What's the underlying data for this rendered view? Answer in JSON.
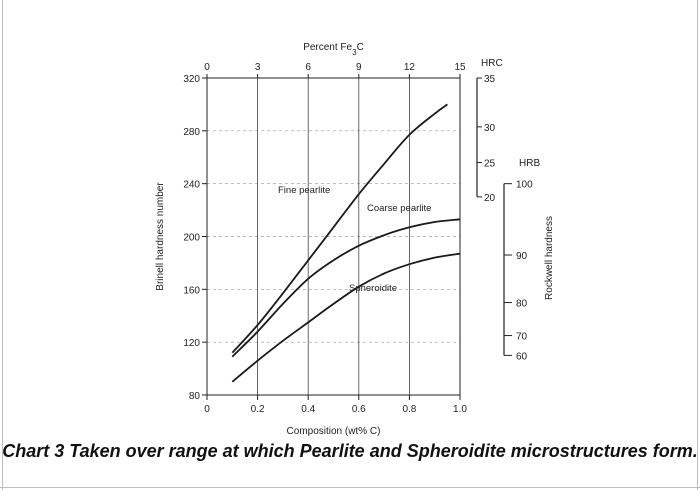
{
  "chart_data": {
    "type": "line",
    "xlabel": "Composition (wt% C)",
    "ylabel": "Brinell hardness number",
    "top_axis_label": "Percent Fe3C",
    "xlim": [
      0,
      1.0
    ],
    "ylim": [
      80,
      320
    ],
    "x_ticks": [
      "0",
      "0.2",
      "0.4",
      "0.6",
      "0.8",
      "1.0"
    ],
    "y_ticks": [
      "80",
      "120",
      "160",
      "200",
      "240",
      "280",
      "320"
    ],
    "top_ticks": [
      {
        "pct": 0,
        "label": "0"
      },
      {
        "pct": 3,
        "label": "3"
      },
      {
        "pct": 6,
        "label": "6"
      },
      {
        "pct": 9,
        "label": "9"
      },
      {
        "pct": 12,
        "label": "12"
      },
      {
        "pct": 15,
        "label": "15"
      }
    ],
    "hrc_scale": {
      "title": "HRC",
      "ticks": [
        {
          "label": "35",
          "bhn": 320
        },
        {
          "label": "30",
          "bhn": 283
        },
        {
          "label": "25",
          "bhn": 256
        },
        {
          "label": "20",
          "bhn": 230
        }
      ]
    },
    "hrb_scale": {
      "title": "HRB",
      "axis_label": "Rockwell hardness",
      "ticks": [
        {
          "label": "100",
          "bhn": 240
        },
        {
          "label": "90",
          "bhn": 186
        },
        {
          "label": "80",
          "bhn": 150
        },
        {
          "label": "70",
          "bhn": 125
        },
        {
          "label": "60",
          "bhn": 110
        }
      ]
    },
    "series": [
      {
        "name": "Fine pearlite",
        "color": "#1a1a1a",
        "x": [
          0.1,
          0.2,
          0.3,
          0.4,
          0.5,
          0.6,
          0.7,
          0.8,
          0.9,
          0.95
        ],
        "y": [
          112,
          133,
          157,
          182,
          207,
          232,
          255,
          277,
          293,
          300
        ]
      },
      {
        "name": "Coarse pearlite",
        "color": "#1a1a1a",
        "x": [
          0.1,
          0.2,
          0.3,
          0.4,
          0.5,
          0.6,
          0.7,
          0.8,
          0.9,
          1.0
        ],
        "y": [
          109,
          128,
          149,
          168,
          182,
          193,
          201,
          207,
          211,
          213
        ]
      },
      {
        "name": "Spheroidite",
        "color": "#1a1a1a",
        "x": [
          0.1,
          0.2,
          0.3,
          0.4,
          0.5,
          0.6,
          0.7,
          0.8,
          0.9,
          1.0
        ],
        "y": [
          90,
          106,
          121,
          135,
          149,
          162,
          172,
          179,
          184,
          187
        ]
      }
    ],
    "grid": true
  },
  "caption": "Chart 3 Taken over range at which Pearlite and Spheroidite microstructures form."
}
